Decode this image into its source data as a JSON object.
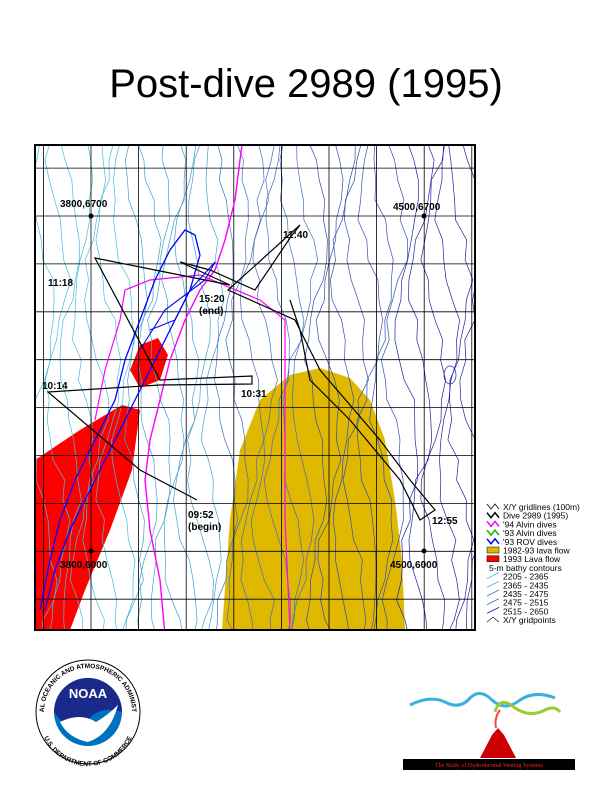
{
  "header": {
    "title": "Post-dive  2989  (1995)"
  },
  "map": {
    "corner_labels": [
      "3800,6700",
      "4500,6700",
      "3800,6000",
      "4500,6000"
    ],
    "time_labels": [
      "11:40",
      "11:18",
      "15:20",
      "(end)",
      "10:14",
      "10:31",
      "09:52",
      "(begin)",
      "12:55"
    ]
  },
  "legend": {
    "items": [
      "X/Y gridlines (100m)",
      "Dive 2989 (1995)",
      "'94 Alvin dives",
      "'93 Alvin dives",
      "'93 ROV dives",
      "1982-93 lava flow",
      "1993 Lava flow"
    ],
    "contour_title": "5-m   bathy  contours",
    "contour_ranges": [
      "2205 - 2365",
      "2365 - 2435",
      "2435 - 2475",
      "2475 - 2515",
      "2515 - 2650"
    ],
    "gridpoints": "X/Y gridpoints"
  },
  "logos": {
    "noaa": "NOAA",
    "noaa_ring_top": "NATIONAL OCEANIC AND ATMOSPHERIC ADMINISTRATION",
    "noaa_ring_bottom": "U.S. DEPARTMENT OF COMMERCE",
    "vents_caption": "The Study of Hydrothermal Venting Systems"
  }
}
